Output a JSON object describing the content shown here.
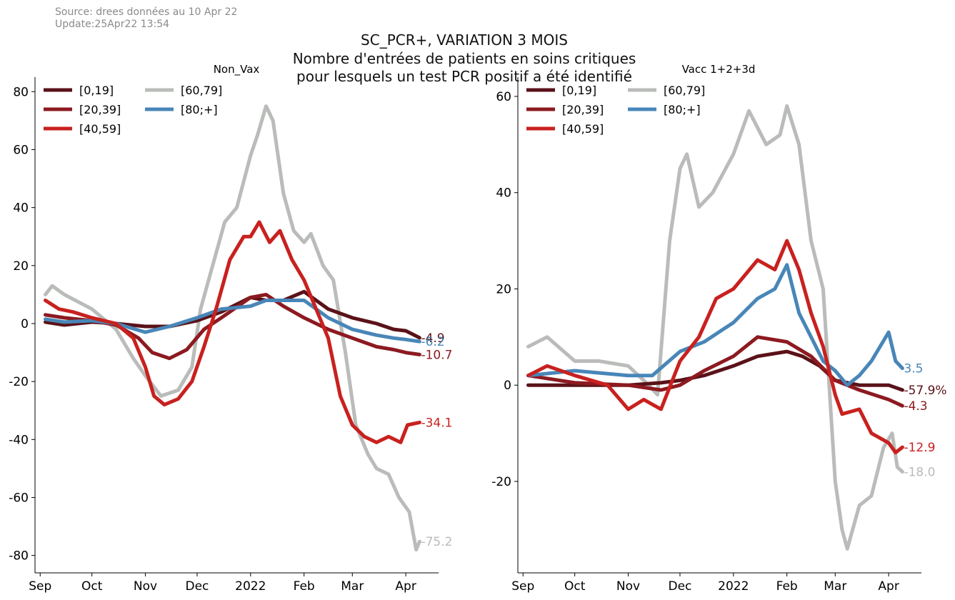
{
  "source_line": "Source: drees données au 10 Apr 22",
  "update_line": "Update:25Apr22 13:54",
  "figure_title": {
    "line1": "SC_PCR+, VARIATION 3 MOIS",
    "line2": "Nombre d'entrées de patients en soins critiques",
    "line3": "pour lesquels un test PCR positif a été identifié"
  },
  "colors": {
    "[0,19]": "#5a1218",
    "[20,39]": "#8c1a20",
    "[40,59]": "#c8211f",
    "[60,79]": "#b9bcb9",
    "[80;+]": "#4886b8"
  },
  "chart_data": [
    {
      "type": "line",
      "title": "Non_Vax",
      "xlabel": "",
      "ylabel": "",
      "x_ticks": [
        "Sep",
        "Oct",
        "Nov",
        "Dec",
        "2022",
        "Feb",
        "Mar",
        "Apr"
      ],
      "x_tick_dates": [
        "2021-09-01",
        "2021-10-01",
        "2021-11-01",
        "2021-12-01",
        "2022-01-01",
        "2022-02-01",
        "2022-03-01",
        "2022-04-01"
      ],
      "xlim": [
        "2021-08-29",
        "2022-04-20"
      ],
      "y_ticks": [
        80,
        60,
        40,
        20,
        0,
        -20,
        -40,
        -60,
        -80
      ],
      "y_tick_labels": [
        "80",
        "60",
        "40",
        "20",
        "0",
        "-20",
        "-40",
        "-60",
        "-80"
      ],
      "ylim": [
        -86,
        85
      ],
      "grid": false,
      "legend": "top-left",
      "series": [
        {
          "name": "[0,19]",
          "end_label": "-4.9",
          "points": [
            [
              "2021-09-04",
              0.5
            ],
            [
              "2021-09-15",
              -0.5
            ],
            [
              "2021-10-01",
              0.5
            ],
            [
              "2021-10-15",
              0
            ],
            [
              "2021-11-01",
              -1
            ],
            [
              "2021-11-15",
              -1
            ],
            [
              "2021-12-01",
              1
            ],
            [
              "2021-12-15",
              4
            ],
            [
              "2022-01-01",
              9
            ],
            [
              "2022-01-10",
              8
            ],
            [
              "2022-01-20",
              8
            ],
            [
              "2022-02-01",
              11
            ],
            [
              "2022-02-15",
              5
            ],
            [
              "2022-03-01",
              2
            ],
            [
              "2022-03-15",
              0
            ],
            [
              "2022-03-25",
              -2
            ],
            [
              "2022-04-01",
              -2.5
            ],
            [
              "2022-04-09",
              -4.9
            ]
          ]
        },
        {
          "name": "[20,39]",
          "end_label": "-10.7",
          "points": [
            [
              "2021-09-04",
              3
            ],
            [
              "2021-09-15",
              2
            ],
            [
              "2021-10-01",
              1
            ],
            [
              "2021-10-15",
              -0.5
            ],
            [
              "2021-10-28",
              -5
            ],
            [
              "2021-11-05",
              -10
            ],
            [
              "2021-11-15",
              -12
            ],
            [
              "2021-11-25",
              -9
            ],
            [
              "2021-12-05",
              -2
            ],
            [
              "2021-12-15",
              2
            ],
            [
              "2022-01-01",
              9
            ],
            [
              "2022-01-10",
              10
            ],
            [
              "2022-01-20",
              6
            ],
            [
              "2022-02-01",
              2
            ],
            [
              "2022-02-15",
              -2
            ],
            [
              "2022-03-01",
              -5
            ],
            [
              "2022-03-15",
              -8
            ],
            [
              "2022-03-25",
              -9
            ],
            [
              "2022-04-01",
              -10
            ],
            [
              "2022-04-09",
              -10.7
            ]
          ]
        },
        {
          "name": "[40,59]",
          "end_label": "-34.1",
          "points": [
            [
              "2021-09-04",
              8
            ],
            [
              "2021-09-12",
              5
            ],
            [
              "2021-09-20",
              4
            ],
            [
              "2021-10-01",
              2
            ],
            [
              "2021-10-15",
              0
            ],
            [
              "2021-10-25",
              -5
            ],
            [
              "2021-11-01",
              -15
            ],
            [
              "2021-11-06",
              -25
            ],
            [
              "2021-11-12",
              -28
            ],
            [
              "2021-11-20",
              -26
            ],
            [
              "2021-11-28",
              -20
            ],
            [
              "2021-12-05",
              -8
            ],
            [
              "2021-12-12",
              5
            ],
            [
              "2021-12-20",
              22
            ],
            [
              "2021-12-28",
              30
            ],
            [
              "2022-01-01",
              30
            ],
            [
              "2022-01-06",
              35
            ],
            [
              "2022-01-12",
              28
            ],
            [
              "2022-01-18",
              32
            ],
            [
              "2022-01-25",
              22
            ],
            [
              "2022-02-01",
              15
            ],
            [
              "2022-02-08",
              5
            ],
            [
              "2022-02-15",
              -5
            ],
            [
              "2022-02-22",
              -25
            ],
            [
              "2022-03-01",
              -35
            ],
            [
              "2022-03-08",
              -39
            ],
            [
              "2022-03-15",
              -41
            ],
            [
              "2022-03-22",
              -39
            ],
            [
              "2022-03-29",
              -41
            ],
            [
              "2022-04-02",
              -35
            ],
            [
              "2022-04-09",
              -34.1
            ]
          ]
        },
        {
          "name": "[60,79]",
          "end_label": "-75.2",
          "points": [
            [
              "2021-09-04",
              10
            ],
            [
              "2021-09-08",
              13
            ],
            [
              "2021-09-15",
              10
            ],
            [
              "2021-10-01",
              5
            ],
            [
              "2021-10-15",
              -2
            ],
            [
              "2021-10-25",
              -12
            ],
            [
              "2021-11-01",
              -18
            ],
            [
              "2021-11-10",
              -25
            ],
            [
              "2021-11-20",
              -23
            ],
            [
              "2021-11-28",
              -15
            ],
            [
              "2021-12-03",
              5
            ],
            [
              "2021-12-10",
              20
            ],
            [
              "2021-12-17",
              35
            ],
            [
              "2021-12-24",
              40
            ],
            [
              "2022-01-01",
              58
            ],
            [
              "2022-01-05",
              65
            ],
            [
              "2022-01-10",
              75
            ],
            [
              "2022-01-14",
              70
            ],
            [
              "2022-01-20",
              45
            ],
            [
              "2022-01-26",
              32
            ],
            [
              "2022-02-01",
              28
            ],
            [
              "2022-02-05",
              31
            ],
            [
              "2022-02-12",
              20
            ],
            [
              "2022-02-18",
              15
            ],
            [
              "2022-02-25",
              -10
            ],
            [
              "2022-03-03",
              -35
            ],
            [
              "2022-03-10",
              -45
            ],
            [
              "2022-03-15",
              -50
            ],
            [
              "2022-03-22",
              -52
            ],
            [
              "2022-03-28",
              -60
            ],
            [
              "2022-04-03",
              -65
            ],
            [
              "2022-04-07",
              -78
            ],
            [
              "2022-04-09",
              -75.2
            ]
          ]
        },
        {
          "name": "[80;+]",
          "end_label": "-6.2",
          "points": [
            [
              "2021-09-04",
              1.5
            ],
            [
              "2021-09-15",
              0.5
            ],
            [
              "2021-10-01",
              1
            ],
            [
              "2021-10-15",
              0
            ],
            [
              "2021-11-01",
              -3
            ],
            [
              "2021-11-15",
              -1
            ],
            [
              "2021-12-01",
              2
            ],
            [
              "2021-12-15",
              5
            ],
            [
              "2022-01-01",
              6
            ],
            [
              "2022-01-10",
              8
            ],
            [
              "2022-01-20",
              8
            ],
            [
              "2022-02-01",
              8
            ],
            [
              "2022-02-15",
              2
            ],
            [
              "2022-03-01",
              -2
            ],
            [
              "2022-03-15",
              -4
            ],
            [
              "2022-03-25",
              -5
            ],
            [
              "2022-04-01",
              -5.5
            ],
            [
              "2022-04-09",
              -6.2
            ]
          ]
        }
      ]
    },
    {
      "type": "line",
      "title": "Vacc 1+2+3d",
      "xlabel": "",
      "ylabel": "",
      "x_ticks": [
        "Sep",
        "Oct",
        "Nov",
        "Dec",
        "2022",
        "Feb",
        "Mar",
        "Apr"
      ],
      "x_tick_dates": [
        "2021-09-01",
        "2021-10-01",
        "2021-11-01",
        "2021-12-01",
        "2022-01-01",
        "2022-02-01",
        "2022-03-01",
        "2022-04-01"
      ],
      "xlim": [
        "2021-08-29",
        "2022-04-20"
      ],
      "y_ticks": [
        60,
        40,
        20,
        0,
        -20
      ],
      "y_tick_labels": [
        "60",
        "40",
        "20",
        "0",
        "-20"
      ],
      "ylim": [
        -39,
        64
      ],
      "grid": false,
      "legend": "top-left",
      "series": [
        {
          "name": "[0,19]",
          "end_label": "-57.9%",
          "points": [
            [
              "2021-09-04",
              0
            ],
            [
              "2021-10-01",
              0
            ],
            [
              "2021-11-01",
              0
            ],
            [
              "2021-11-20",
              0.5
            ],
            [
              "2021-12-01",
              1
            ],
            [
              "2021-12-15",
              2
            ],
            [
              "2022-01-01",
              4
            ],
            [
              "2022-01-15",
              6
            ],
            [
              "2022-02-01",
              7
            ],
            [
              "2022-02-10",
              6
            ],
            [
              "2022-02-20",
              4
            ],
            [
              "2022-03-01",
              1
            ],
            [
              "2022-03-15",
              0
            ],
            [
              "2022-04-01",
              0
            ],
            [
              "2022-04-09",
              -1
            ]
          ]
        },
        {
          "name": "[20,39]",
          "end_label": "-4.3",
          "points": [
            [
              "2021-09-04",
              2
            ],
            [
              "2021-10-01",
              0.5
            ],
            [
              "2021-11-01",
              0
            ],
            [
              "2021-11-20",
              -1
            ],
            [
              "2021-12-01",
              0
            ],
            [
              "2021-12-15",
              3
            ],
            [
              "2022-01-01",
              6
            ],
            [
              "2022-01-15",
              10
            ],
            [
              "2022-02-01",
              9
            ],
            [
              "2022-02-15",
              6
            ],
            [
              "2022-03-01",
              1
            ],
            [
              "2022-03-15",
              -1
            ],
            [
              "2022-04-01",
              -3
            ],
            [
              "2022-04-09",
              -4.3
            ]
          ]
        },
        {
          "name": "[40,59]",
          "end_label": "-12.9",
          "points": [
            [
              "2021-09-04",
              2
            ],
            [
              "2021-09-15",
              4
            ],
            [
              "2021-10-01",
              2
            ],
            [
              "2021-10-20",
              0
            ],
            [
              "2021-11-01",
              -5
            ],
            [
              "2021-11-10",
              -3
            ],
            [
              "2021-11-20",
              -5
            ],
            [
              "2021-12-01",
              5
            ],
            [
              "2021-12-12",
              10
            ],
            [
              "2021-12-22",
              18
            ],
            [
              "2022-01-01",
              20
            ],
            [
              "2022-01-15",
              26
            ],
            [
              "2022-01-25",
              24
            ],
            [
              "2022-02-01",
              30
            ],
            [
              "2022-02-08",
              24
            ],
            [
              "2022-02-15",
              15
            ],
            [
              "2022-02-22",
              8
            ],
            [
              "2022-03-01",
              -2
            ],
            [
              "2022-03-05",
              -6
            ],
            [
              "2022-03-15",
              -5
            ],
            [
              "2022-03-22",
              -10
            ],
            [
              "2022-04-01",
              -12
            ],
            [
              "2022-04-05",
              -14
            ],
            [
              "2022-04-09",
              -12.9
            ]
          ]
        },
        {
          "name": "[60,79]",
          "end_label": "-18.0",
          "points": [
            [
              "2021-09-04",
              8
            ],
            [
              "2021-09-15",
              10
            ],
            [
              "2021-10-01",
              5
            ],
            [
              "2021-10-15",
              5
            ],
            [
              "2021-11-01",
              4
            ],
            [
              "2021-11-10",
              1
            ],
            [
              "2021-11-18",
              -2
            ],
            [
              "2021-11-25",
              30
            ],
            [
              "2021-12-01",
              45
            ],
            [
              "2021-12-05",
              48
            ],
            [
              "2021-12-12",
              37
            ],
            [
              "2021-12-20",
              40
            ],
            [
              "2022-01-01",
              48
            ],
            [
              "2022-01-10",
              57
            ],
            [
              "2022-01-20",
              50
            ],
            [
              "2022-01-28",
              52
            ],
            [
              "2022-02-01",
              58
            ],
            [
              "2022-02-08",
              50
            ],
            [
              "2022-02-15",
              30
            ],
            [
              "2022-02-22",
              20
            ],
            [
              "2022-03-01",
              -20
            ],
            [
              "2022-03-05",
              -30
            ],
            [
              "2022-03-08",
              -34
            ],
            [
              "2022-03-15",
              -25
            ],
            [
              "2022-03-22",
              -23
            ],
            [
              "2022-03-29",
              -13
            ],
            [
              "2022-04-03",
              -10
            ],
            [
              "2022-04-06",
              -17
            ],
            [
              "2022-04-09",
              -18
            ]
          ]
        },
        {
          "name": "[80;+]",
          "end_label": "3.5",
          "points": [
            [
              "2021-09-04",
              2
            ],
            [
              "2021-10-01",
              3
            ],
            [
              "2021-11-01",
              2
            ],
            [
              "2021-11-15",
              2
            ],
            [
              "2021-12-01",
              7
            ],
            [
              "2021-12-15",
              9
            ],
            [
              "2022-01-01",
              13
            ],
            [
              "2022-01-15",
              18
            ],
            [
              "2022-01-25",
              20
            ],
            [
              "2022-02-01",
              25
            ],
            [
              "2022-02-08",
              15
            ],
            [
              "2022-02-15",
              10
            ],
            [
              "2022-02-22",
              5
            ],
            [
              "2022-03-01",
              3
            ],
            [
              "2022-03-08",
              0
            ],
            [
              "2022-03-15",
              2
            ],
            [
              "2022-03-22",
              5
            ],
            [
              "2022-04-01",
              11
            ],
            [
              "2022-04-05",
              5
            ],
            [
              "2022-04-09",
              3.5
            ]
          ]
        }
      ]
    }
  ]
}
